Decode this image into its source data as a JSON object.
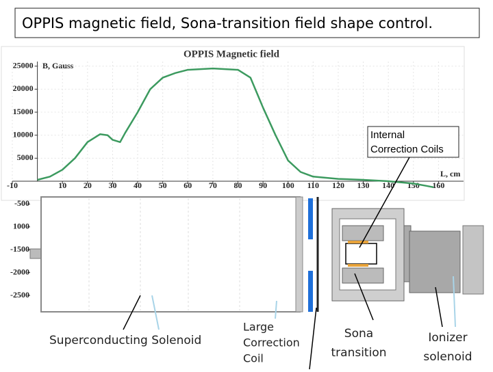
{
  "slide_title": "OPPIS magnetic field, Sona-transition field shape control.",
  "chart_data": {
    "type": "line",
    "title": "OPPIS Magnetic field",
    "ylabel": "B, Gauss",
    "xlabel": "L, cm",
    "xlim": [
      -10,
      170
    ],
    "xticks": [
      -10,
      10,
      20,
      30,
      40,
      50,
      60,
      70,
      80,
      90,
      100,
      110,
      120,
      130,
      140,
      150,
      160
    ],
    "ylim": [
      0,
      26000
    ],
    "yticks": [
      5000,
      10000,
      15000,
      20000,
      25000
    ],
    "y2lim": [
      -2500,
      0
    ],
    "y2ticks": [
      -500,
      {
        "value": -1000,
        "label": "1000"
      },
      -1500,
      -2000,
      -2500
    ],
    "grid": true,
    "x": [
      0,
      5,
      10,
      15,
      20,
      25,
      28,
      30,
      33,
      35,
      40,
      45,
      50,
      55,
      60,
      70,
      80,
      85,
      90,
      95,
      100,
      105,
      110,
      120,
      130,
      140,
      150,
      155,
      158
    ],
    "series": [
      {
        "color": "#3c9a5f",
        "values": [
          300,
          1000,
          2500,
          5000,
          8500,
          10200,
          10000,
          9000,
          8500,
          10500,
          15000,
          20000,
          22500,
          23500,
          24200,
          24500,
          24200,
          22500,
          16000,
          10000,
          4500,
          2000,
          1000,
          500,
          300,
          0,
          -500,
          -1000,
          -1300
        ]
      }
    ]
  },
  "annotations": {
    "internal_coils": [
      "Internal",
      "Correction Coils"
    ],
    "superconducting": "Superconducting Solenoid",
    "large_coil": [
      "Large",
      "Correction",
      "Coil"
    ],
    "sona": [
      "Sona",
      "transition"
    ],
    "ionizer": [
      "Ionizer",
      "solenoid"
    ]
  }
}
